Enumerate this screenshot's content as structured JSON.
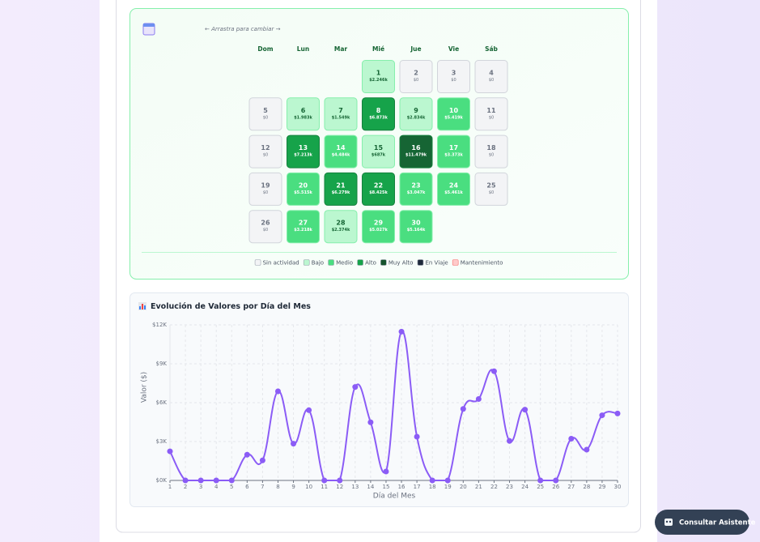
{
  "calendar": {
    "hint": "← Arrastra para cambiar →",
    "weekdays": [
      "Dom",
      "Lun",
      "Mar",
      "Mié",
      "Jue",
      "Vie",
      "Sáb"
    ],
    "weeks": [
      [
        null,
        null,
        null,
        {
          "day": 1,
          "amount": "$2.246k",
          "color": "#bbf7d0"
        },
        {
          "day": 2,
          "amount": "$0",
          "color": "#f3f4f6"
        },
        {
          "day": 3,
          "amount": "$0",
          "color": "#f3f4f6"
        },
        {
          "day": 4,
          "amount": "$0",
          "color": "#f3f4f6"
        }
      ],
      [
        {
          "day": 5,
          "amount": "$0",
          "color": "#f3f4f6"
        },
        {
          "day": 6,
          "amount": "$1.983k",
          "color": "#bbf7d0"
        },
        {
          "day": 7,
          "amount": "$1.549k",
          "color": "#bbf7d0"
        },
        {
          "day": 8,
          "amount": "$6.873k",
          "color": "#16a34a"
        },
        {
          "day": 9,
          "amount": "$2.834k",
          "color": "#bbf7d0"
        },
        {
          "day": 10,
          "amount": "$5.419k",
          "color": "#4ade80"
        },
        {
          "day": 11,
          "amount": "$0",
          "color": "#f3f4f6"
        }
      ],
      [
        {
          "day": 12,
          "amount": "$0",
          "color": "#f3f4f6"
        },
        {
          "day": 13,
          "amount": "$7.213k",
          "color": "#16a34a"
        },
        {
          "day": 14,
          "amount": "$4.484k",
          "color": "#4ade80"
        },
        {
          "day": 15,
          "amount": "$687k",
          "color": "#bbf7d0"
        },
        {
          "day": 16,
          "amount": "$11.479k",
          "color": "#166534"
        },
        {
          "day": 17,
          "amount": "$3.373k",
          "color": "#4ade80"
        },
        {
          "day": 18,
          "amount": "$0",
          "color": "#f3f4f6"
        }
      ],
      [
        {
          "day": 19,
          "amount": "$0",
          "color": "#f3f4f6"
        },
        {
          "day": 20,
          "amount": "$5.515k",
          "color": "#4ade80"
        },
        {
          "day": 21,
          "amount": "$6.279k",
          "color": "#16a34a"
        },
        {
          "day": 22,
          "amount": "$8.425k",
          "color": "#16a34a"
        },
        {
          "day": 23,
          "amount": "$3.047k",
          "color": "#4ade80"
        },
        {
          "day": 24,
          "amount": "$5.461k",
          "color": "#4ade80"
        },
        {
          "day": 25,
          "amount": "$0",
          "color": "#f3f4f6"
        }
      ],
      [
        {
          "day": 26,
          "amount": "$0",
          "color": "#f3f4f6"
        },
        {
          "day": 27,
          "amount": "$3.218k",
          "color": "#4ade80"
        },
        {
          "day": 28,
          "amount": "$2.374k",
          "color": "#bbf7d0"
        },
        {
          "day": 29,
          "amount": "$5.027k",
          "color": "#4ade80"
        },
        {
          "day": 30,
          "amount": "$5.164k",
          "color": "#4ade80"
        },
        null,
        null
      ]
    ],
    "legend": [
      {
        "name": "Sin actividad",
        "color": "#f3f4f6"
      },
      {
        "name": "Bajo",
        "color": "#bbf7d0"
      },
      {
        "name": "Medio",
        "color": "#4ade80"
      },
      {
        "name": "Alto",
        "color": "#16a34a"
      },
      {
        "name": "Muy Alto",
        "color": "#14532d"
      },
      {
        "name": "En Viaje",
        "color": "#1e293b"
      },
      {
        "name": "Mantenimiento",
        "color": "#fecaca"
      }
    ]
  },
  "chart_data": {
    "type": "line",
    "title": "Evolución de Valores por Día del Mes",
    "x_label": "Día del Mes",
    "y_label": "Valor ($)",
    "x": [
      1,
      2,
      3,
      4,
      5,
      6,
      7,
      8,
      9,
      10,
      11,
      12,
      13,
      14,
      15,
      16,
      17,
      18,
      19,
      20,
      21,
      22,
      23,
      24,
      25,
      26,
      27,
      28,
      29,
      30
    ],
    "series": [
      {
        "color": "#8b5cf6",
        "values": [
          2246,
          0,
          0,
          0,
          0,
          1983,
          1549,
          6873,
          2834,
          5419,
          0,
          0,
          7213,
          4484,
          687,
          11479,
          3373,
          0,
          0,
          5515,
          6279,
          8425,
          3047,
          5461,
          0,
          0,
          3218,
          2374,
          5027,
          5164
        ]
      }
    ],
    "xlim": [
      1,
      30
    ],
    "xticks": [
      1,
      2,
      3,
      4,
      5,
      6,
      7,
      8,
      9,
      10,
      11,
      12,
      13,
      14,
      15,
      16,
      17,
      18,
      19,
      20,
      21,
      22,
      23,
      24,
      25,
      26,
      27,
      28,
      29,
      30
    ],
    "ylim": [
      0,
      12000
    ],
    "yticks": [
      {
        "value": 0,
        "label": "$0K"
      },
      {
        "value": 3000,
        "label": "$3K"
      },
      {
        "value": 6000,
        "label": "$6K"
      },
      {
        "value": 9000,
        "label": "$9K"
      },
      {
        "value": 12000,
        "label": "$12K"
      }
    ],
    "grid": true
  },
  "assistant_button": "Consultar Asistente"
}
